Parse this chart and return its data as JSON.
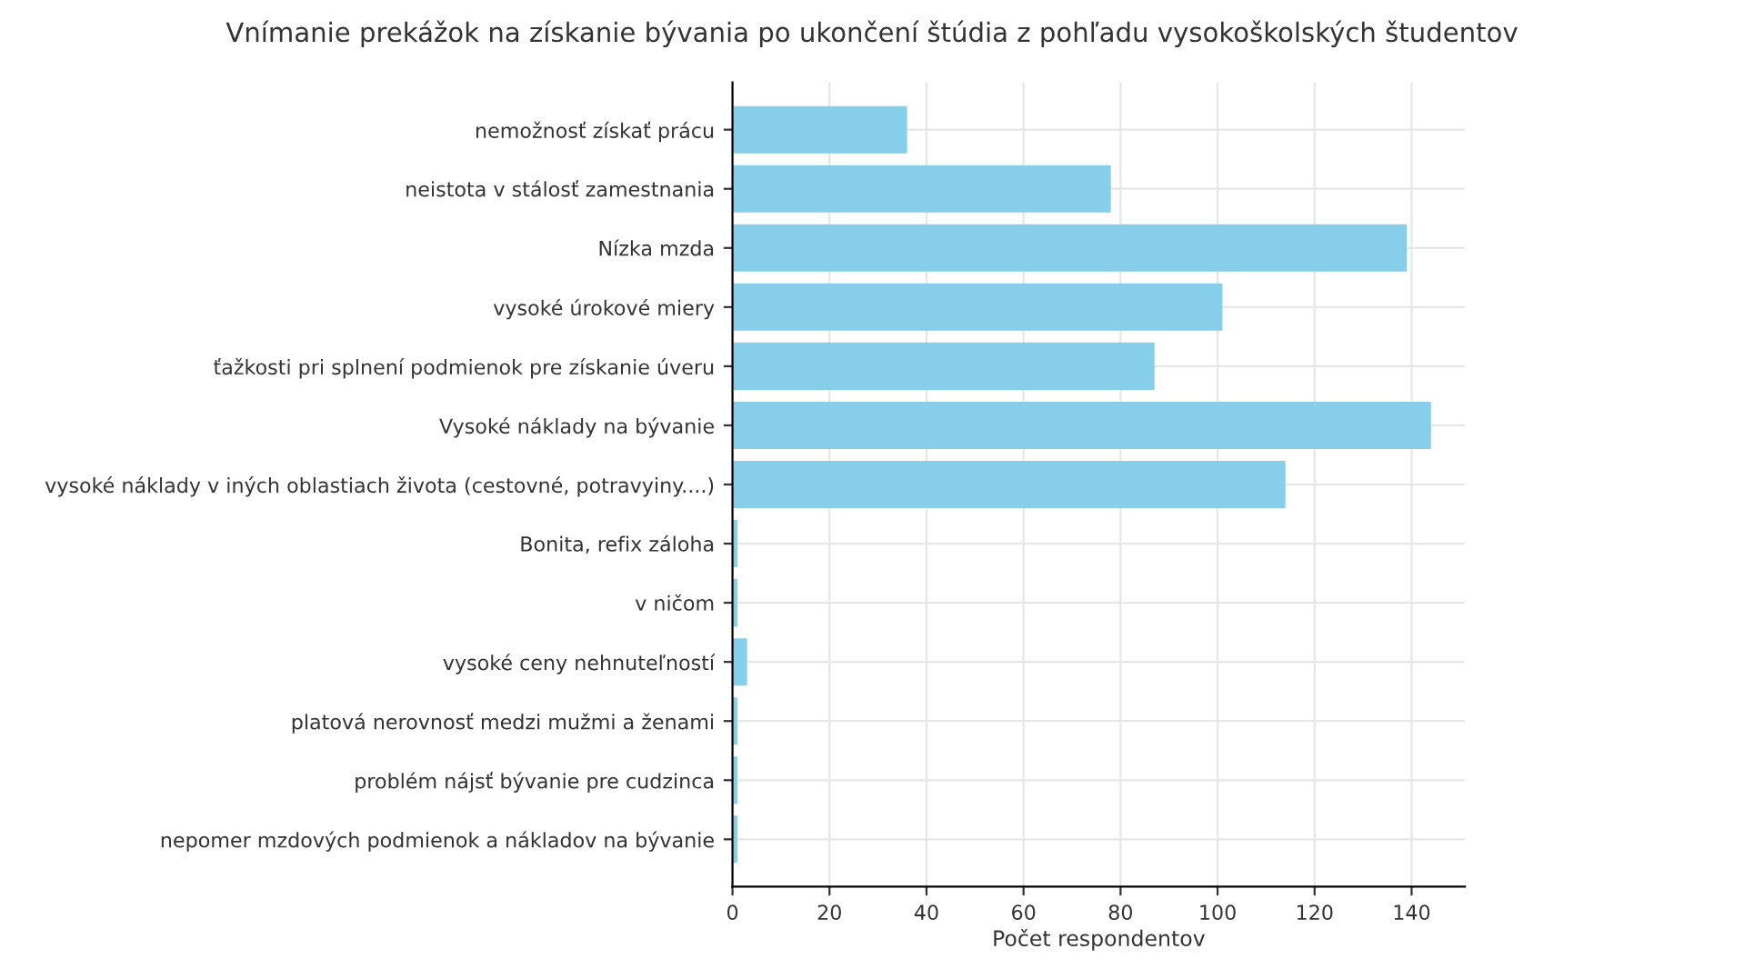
{
  "chart_data": {
    "type": "bar",
    "orientation": "horizontal",
    "title": "Vnímanie prekážok na získanie bývania po ukončení štúdia z pohľadu vysokoškolských študentov",
    "xlabel": "Počet respondentov",
    "categories": [
      "nemožnosť získať prácu",
      "neistota v stálosť zamestnania",
      "Nízka mzda",
      "vysoké úrokové miery",
      "ťažkosti pri splnení podmienok pre získanie úveru",
      "Vysoké náklady na bývanie",
      "vysoké náklady v iných oblastiach života (cestovné, potravyiny....)",
      "Bonita, refix záloha",
      "v ničom",
      "vysoké ceny nehnuteľností",
      "platová nerovnosť medzi mužmi a ženami",
      "problém nájsť bývanie pre cudzinca",
      "nepomer mzdových podmienok a nákladov na bývanie"
    ],
    "values": [
      36,
      78,
      139,
      101,
      87,
      144,
      114,
      1,
      1,
      3,
      1,
      1,
      1
    ],
    "color": "#87ceeb",
    "xlim": [
      0,
      151
    ],
    "xticks": [
      0,
      20,
      40,
      60,
      80,
      100,
      120,
      140
    ],
    "grid": true
  }
}
